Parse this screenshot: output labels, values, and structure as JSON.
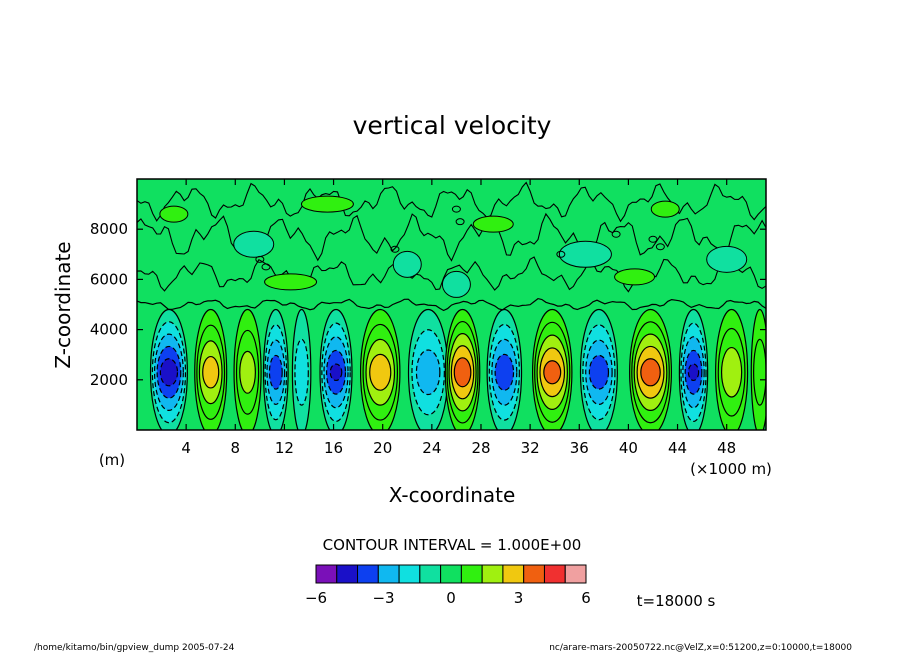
{
  "chart_data": {
    "type": "heatmap",
    "title": "vertical velocity",
    "xlabel": "X-coordinate",
    "ylabel": "Z-coordinate",
    "x_unit_label": "(×1000 m)",
    "y_unit_label": "(m)",
    "xlim": [
      0,
      51200
    ],
    "ylim": [
      0,
      10000
    ],
    "x_ticks": [
      4,
      8,
      12,
      16,
      20,
      24,
      28,
      32,
      36,
      40,
      44,
      48
    ],
    "y_ticks": [
      2000,
      4000,
      6000,
      8000
    ],
    "contour_interval_text": "CONTOUR INTERVAL = 1.000E+00",
    "colorbar": {
      "levels": [
        -6,
        -5,
        -4,
        -3,
        -2,
        -1,
        0,
        1,
        2,
        3,
        4,
        5,
        6
      ],
      "tick_labels": [
        "−6",
        "−3",
        "0",
        "3",
        "6"
      ],
      "tick_values": [
        -6,
        -3,
        0,
        3,
        6
      ],
      "colors": [
        "#7a10b8",
        "#1a10c8",
        "#0d40f0",
        "#10b8f0",
        "#10e0e0",
        "#10e0a0",
        "#10e060",
        "#30f010",
        "#a0f010",
        "#f0c810",
        "#f06010",
        "#f03030",
        "#f0a0a0"
      ]
    },
    "cells": [
      {
        "x": 2600,
        "w": 3000,
        "peak": -4.5
      },
      {
        "x": 6000,
        "w": 2600,
        "peak": 3.4
      },
      {
        "x": 9000,
        "w": 2200,
        "peak": 2.4
      },
      {
        "x": 11300,
        "w": 2000,
        "peak": -3.5
      },
      {
        "x": 13400,
        "w": 1500,
        "peak": -1.5
      },
      {
        "x": 16200,
        "w": 2600,
        "peak": -4.0
      },
      {
        "x": 19800,
        "w": 3200,
        "peak": 3.6
      },
      {
        "x": 23700,
        "w": 3200,
        "peak": -2.5
      },
      {
        "x": 26500,
        "w": 2800,
        "peak": 4.6
      },
      {
        "x": 29900,
        "w": 2800,
        "peak": -3.6
      },
      {
        "x": 33800,
        "w": 3200,
        "peak": 4.3
      },
      {
        "x": 37600,
        "w": 3000,
        "peak": -3.5
      },
      {
        "x": 41800,
        "w": 3400,
        "peak": 4.5
      },
      {
        "x": 45300,
        "w": 2300,
        "peak": -4.0
      },
      {
        "x": 48400,
        "w": 2600,
        "peak": 2.7
      },
      {
        "x": 50700,
        "w": 1400,
        "peak": 1.5
      }
    ]
  },
  "time_label": "t=18000 s",
  "footer": {
    "left": "/home/kitamo/bin/gpview_dump  2005-07-24",
    "right": "nc/arare-mars-20050722.nc@VelZ,x=0:51200,z=0:10000,t=18000"
  }
}
